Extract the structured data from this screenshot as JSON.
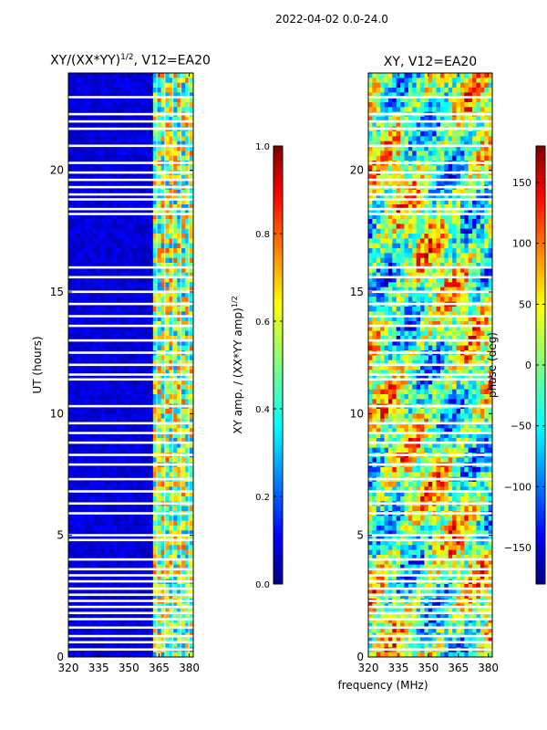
{
  "suptitle": "2022-04-02 0.0-24.0",
  "chart_data": [
    {
      "type": "heatmap",
      "title_main": "XY/(XX*YY)",
      "title_exp": "1/2",
      "title_suffix": ", V12=EA20",
      "ylabel": "UT (hours)",
      "ylim": [
        0,
        24
      ],
      "xlim": [
        320,
        382
      ],
      "xticks": [
        320,
        335,
        350,
        365,
        380
      ],
      "yticks": [
        0,
        5,
        10,
        15,
        20
      ],
      "colorbar": {
        "label_main": "XY amp. / (XX*YY amp)",
        "label_exp": "1/2",
        "range": [
          0.0,
          1.0
        ],
        "ticks": [
          "0.0",
          "0.2",
          "0.4",
          "0.6",
          "0.8",
          "1.0"
        ],
        "tick_values": [
          0.0,
          0.2,
          0.4,
          0.6,
          0.8,
          1.0
        ]
      }
    },
    {
      "type": "heatmap",
      "title": "XY, V12=EA20",
      "ylim": [
        0,
        24
      ],
      "xlim": [
        320,
        382
      ],
      "xticks": [
        320,
        335,
        350,
        365,
        380
      ],
      "yticks": [
        0,
        5,
        10,
        15,
        20
      ],
      "colorbar": {
        "label": "phase (deg)",
        "range": [
          -180,
          180
        ],
        "ticks": [
          "150",
          "100",
          "50",
          "0",
          "−50",
          "−100",
          "−150"
        ],
        "tick_values": [
          150,
          100,
          50,
          0,
          -50,
          -100,
          -150
        ]
      }
    }
  ],
  "xlabel": "frequency (MHz)",
  "flagged_hours": [
    0.3,
    0.6,
    0.85,
    1.2,
    1.55,
    1.8,
    2.05,
    2.3,
    2.55,
    2.8,
    3.1,
    3.35,
    3.6,
    4.0,
    4.8,
    5.0,
    5.9,
    6.3,
    6.8,
    7.3,
    7.9,
    8.3,
    8.8,
    9.2,
    9.6,
    10.3,
    11.4,
    11.6,
    12.0,
    12.5,
    13.0,
    13.6,
    14.0,
    14.5,
    15.0,
    15.6,
    16.0,
    18.2,
    18.4,
    18.8,
    19.0,
    19.3,
    19.6,
    19.9,
    20.3,
    21.0,
    21.7,
    22.0,
    22.3,
    23.0
  ]
}
